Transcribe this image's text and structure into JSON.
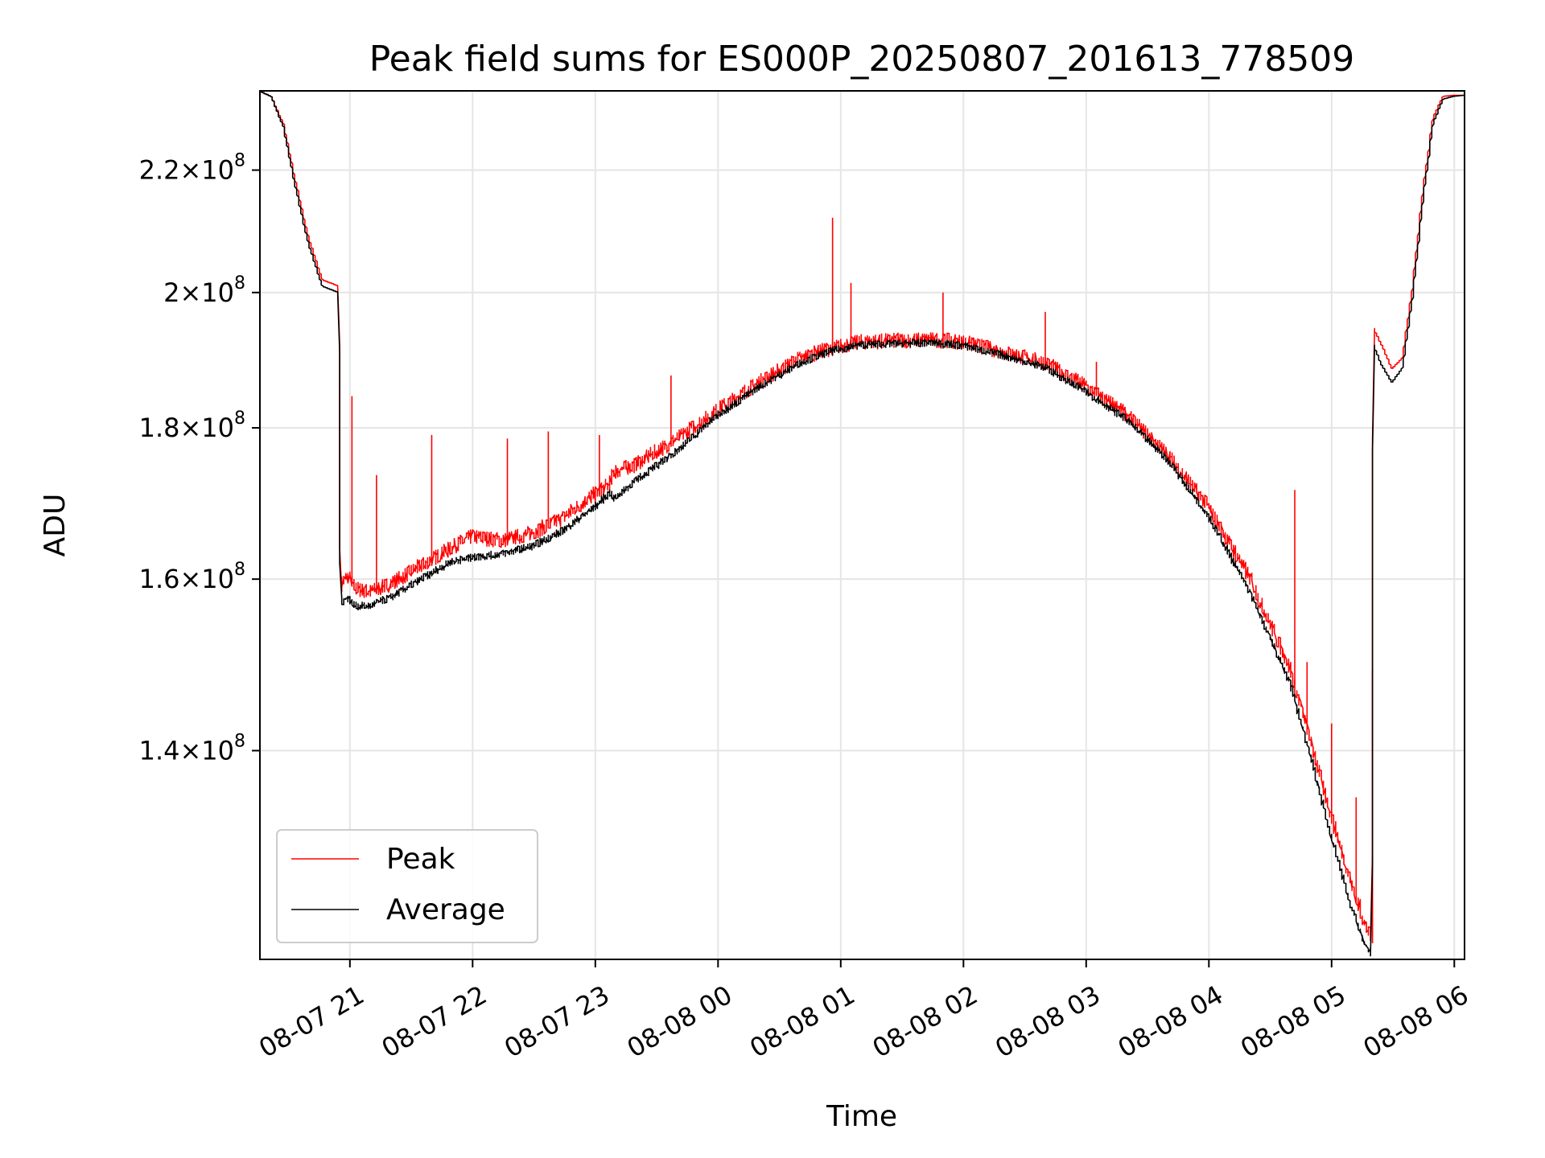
{
  "chart_data": {
    "type": "line",
    "title": "Peak field sums for ES000P_20250807_201613_778509",
    "xlabel": "Time",
    "ylabel": "ADU",
    "x_axis": "datetime",
    "y_scale": "log",
    "grid": true,
    "legend_position": "lower-left",
    "xlim": [
      "2025-08-07 20:16",
      "2025-08-08 06:05"
    ],
    "ylim": [
      119000000,
      234000000
    ],
    "x_ticks": [
      {
        "value": "2025-08-07 21:00",
        "label": "08-07 21"
      },
      {
        "value": "2025-08-07 22:00",
        "label": "08-07 22"
      },
      {
        "value": "2025-08-07 23:00",
        "label": "08-07 23"
      },
      {
        "value": "2025-08-08 00:00",
        "label": "08-08 00"
      },
      {
        "value": "2025-08-08 01:00",
        "label": "08-08 01"
      },
      {
        "value": "2025-08-08 02:00",
        "label": "08-08 02"
      },
      {
        "value": "2025-08-08 03:00",
        "label": "08-08 03"
      },
      {
        "value": "2025-08-08 04:00",
        "label": "08-08 04"
      },
      {
        "value": "2025-08-08 05:00",
        "label": "08-08 05"
      },
      {
        "value": "2025-08-08 06:00",
        "label": "08-08 06"
      }
    ],
    "y_ticks": [
      {
        "value": 140000000,
        "mantissa": "1.4",
        "base": "10",
        "exp": "8"
      },
      {
        "value": 160000000,
        "mantissa": "1.6",
        "base": "10",
        "exp": "8"
      },
      {
        "value": 180000000,
        "mantissa": "1.8",
        "base": "10",
        "exp": "8"
      },
      {
        "value": 200000000,
        "mantissa": "2",
        "base": "10",
        "exp": "8"
      },
      {
        "value": 220000000,
        "mantissa": "2.2",
        "base": "10",
        "exp": "8"
      }
    ],
    "series": [
      {
        "name": "Peak",
        "color": "#ff0000",
        "x": [
          "2025-08-07 20:16",
          "2025-08-07 20:22",
          "2025-08-07 20:28",
          "2025-08-07 20:34",
          "2025-08-07 20:40",
          "2025-08-07 20:44",
          "2025-08-07 20:47",
          "2025-08-07 20:55",
          "2025-08-07 20:56",
          "2025-08-07 21:00",
          "2025-08-07 21:03",
          "2025-08-07 21:10",
          "2025-08-07 21:20",
          "2025-08-07 21:30",
          "2025-08-07 21:40",
          "2025-08-07 21:50",
          "2025-08-07 22:00",
          "2025-08-07 22:15",
          "2025-08-07 22:30",
          "2025-08-07 22:45",
          "2025-08-07 23:00",
          "2025-08-07 23:08",
          "2025-08-07 23:09",
          "2025-08-07 23:20",
          "2025-08-07 23:40",
          "2025-08-08 00:00",
          "2025-08-08 00:20",
          "2025-08-08 00:40",
          "2025-08-08 00:55",
          "2025-08-08 01:10",
          "2025-08-08 01:30",
          "2025-08-08 01:45",
          "2025-08-08 02:00",
          "2025-08-08 02:20",
          "2025-08-08 02:40",
          "2025-08-08 03:00",
          "2025-08-08 03:20",
          "2025-08-08 03:40",
          "2025-08-08 04:00",
          "2025-08-08 04:20",
          "2025-08-08 04:40",
          "2025-08-08 04:50",
          "2025-08-08 05:00",
          "2025-08-08 05:10",
          "2025-08-08 05:17",
          "2025-08-08 05:20",
          "2025-08-08 05:21",
          "2025-08-08 05:25",
          "2025-08-08 05:30",
          "2025-08-08 05:35",
          "2025-08-08 05:40",
          "2025-08-08 05:45",
          "2025-08-08 05:50",
          "2025-08-08 05:55",
          "2025-08-08 06:00",
          "2025-08-08 06:05"
        ],
        "values": [
          234000000,
          233000000,
          228000000,
          218000000,
          209000000,
          205000000,
          202000000,
          201000000,
          159000000,
          160000000,
          158500000,
          158000000,
          159000000,
          160500000,
          162000000,
          163500000,
          165000000,
          164500000,
          165500000,
          167500000,
          170500000,
          172000000,
          173500000,
          174500000,
          178000000,
          182000000,
          186000000,
          189500000,
          191000000,
          192000000,
          192200000,
          192300000,
          192000000,
          190500000,
          189000000,
          185500000,
          181500000,
          176000000,
          169000000,
          160000000,
          149000000,
          141000000,
          133000000,
          126000000,
          122000000,
          120500000,
          194500000,
          192000000,
          188500000,
          190000000,
          200500000,
          216000000,
          229000000,
          233000000,
          233200000,
          233200000
        ],
        "spikes": [
          {
            "x": "2025-08-07 21:01",
            "value": 184500000
          },
          {
            "x": "2025-08-07 21:13",
            "value": 173500000
          },
          {
            "x": "2025-08-07 21:40",
            "value": 179000000
          },
          {
            "x": "2025-08-07 22:17",
            "value": 178500000
          },
          {
            "x": "2025-08-07 22:37",
            "value": 179500000
          },
          {
            "x": "2025-08-07 23:02",
            "value": 179000000
          },
          {
            "x": "2025-08-07 23:37",
            "value": 187500000
          },
          {
            "x": "2025-08-08 00:56",
            "value": 212000000
          },
          {
            "x": "2025-08-08 01:05",
            "value": 201500000
          },
          {
            "x": "2025-08-08 01:50",
            "value": 200000000
          },
          {
            "x": "2025-08-08 02:40",
            "value": 197000000
          },
          {
            "x": "2025-08-08 03:05",
            "value": 189500000
          },
          {
            "x": "2025-08-08 04:42",
            "value": 171500000
          },
          {
            "x": "2025-08-08 04:48",
            "value": 150000000
          },
          {
            "x": "2025-08-08 05:00",
            "value": 143000000
          },
          {
            "x": "2025-08-08 05:12",
            "value": 135000000
          },
          {
            "x": "2025-08-08 05:20",
            "value": 149000000
          }
        ]
      },
      {
        "name": "Average",
        "color": "#000000",
        "x": [
          "2025-08-07 20:16",
          "2025-08-07 20:22",
          "2025-08-07 20:28",
          "2025-08-07 20:34",
          "2025-08-07 20:40",
          "2025-08-07 20:44",
          "2025-08-07 20:47",
          "2025-08-07 20:55",
          "2025-08-07 20:56",
          "2025-08-07 21:00",
          "2025-08-07 21:03",
          "2025-08-07 21:10",
          "2025-08-07 21:20",
          "2025-08-07 21:30",
          "2025-08-07 21:40",
          "2025-08-07 21:50",
          "2025-08-07 22:00",
          "2025-08-07 22:15",
          "2025-08-07 22:30",
          "2025-08-07 22:45",
          "2025-08-07 23:00",
          "2025-08-07 23:08",
          "2025-08-07 23:09",
          "2025-08-07 23:20",
          "2025-08-07 23:40",
          "2025-08-08 00:00",
          "2025-08-08 00:20",
          "2025-08-08 00:40",
          "2025-08-08 00:55",
          "2025-08-08 01:10",
          "2025-08-08 01:30",
          "2025-08-08 01:45",
          "2025-08-08 02:00",
          "2025-08-08 02:20",
          "2025-08-08 02:40",
          "2025-08-08 03:00",
          "2025-08-08 03:20",
          "2025-08-08 03:40",
          "2025-08-08 04:00",
          "2025-08-08 04:20",
          "2025-08-08 04:40",
          "2025-08-08 04:50",
          "2025-08-08 05:00",
          "2025-08-08 05:10",
          "2025-08-08 05:17",
          "2025-08-08 05:20",
          "2025-08-08 05:21",
          "2025-08-08 05:25",
          "2025-08-08 05:30",
          "2025-08-08 05:35",
          "2025-08-08 05:40",
          "2025-08-08 05:45",
          "2025-08-08 05:50",
          "2025-08-08 05:55",
          "2025-08-08 06:00",
          "2025-08-08 06:05"
        ],
        "values": [
          234000000,
          233000000,
          227500000,
          217000000,
          208000000,
          204000000,
          201000000,
          200000000,
          157000000,
          157500000,
          156500000,
          156500000,
          157500000,
          159000000,
          160500000,
          162000000,
          162500000,
          163000000,
          164000000,
          166000000,
          169000000,
          171000000,
          170000000,
          172500000,
          176500000,
          181500000,
          185500000,
          189000000,
          190800000,
          191800000,
          192000000,
          192100000,
          191700000,
          190200000,
          188500000,
          185000000,
          181000000,
          175500000,
          168000000,
          158500000,
          147500000,
          139500000,
          131000000,
          124000000,
          120000000,
          119500000,
          192000000,
          189000000,
          186500000,
          188500000,
          199000000,
          214500000,
          228000000,
          232500000,
          233000000,
          233200000
        ]
      }
    ]
  }
}
